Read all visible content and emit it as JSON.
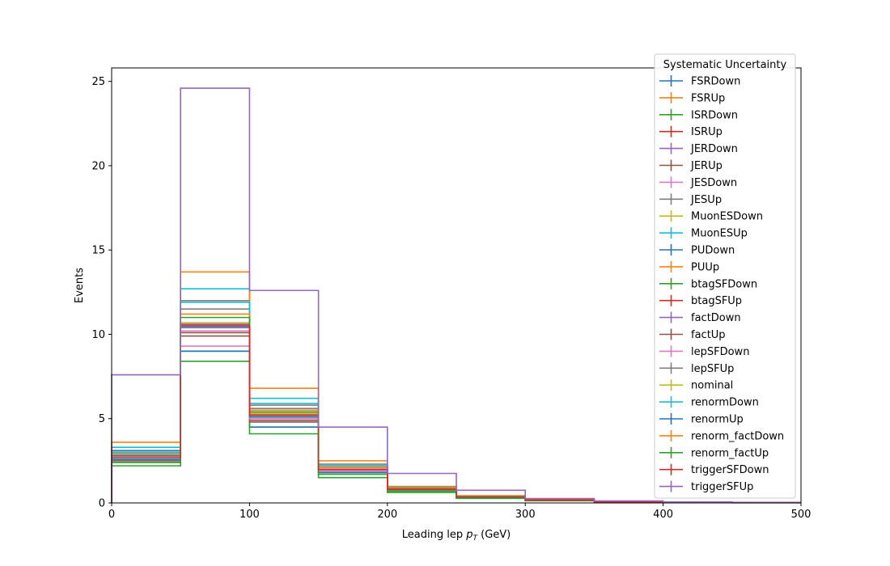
{
  "chart_data": {
    "type": "step-histogram",
    "xlabel_main": "Leading lep ",
    "xlabel_var": "p",
    "xlabel_sub": "T",
    "xlabel_unit": " (GeV)",
    "ylabel": "Events",
    "xlim": [
      0,
      500
    ],
    "ylim": [
      0,
      25.8
    ],
    "xticks": [
      0,
      100,
      200,
      300,
      400,
      500
    ],
    "yticks": [
      0,
      5,
      10,
      15,
      20,
      25
    ],
    "grid": false,
    "legend": {
      "title": "Systematic Uncertainty",
      "placement": "upper-right"
    },
    "bin_edges": [
      0,
      50,
      100,
      150,
      200,
      250,
      300,
      350,
      400,
      450,
      500
    ],
    "series": [
      {
        "name": "FSRDown",
        "color": "#1f77b4",
        "values": [
          2.8,
          9.0,
          5.3,
          2.1,
          0.85,
          0.38,
          0.18,
          0.08,
          0.04,
          0.02
        ]
      },
      {
        "name": "FSRUp",
        "color": "#ff7f0e",
        "values": [
          2.6,
          10.6,
          5.0,
          1.9,
          0.78,
          0.34,
          0.16,
          0.07,
          0.03,
          0.02
        ]
      },
      {
        "name": "ISRDown",
        "color": "#2ca02c",
        "values": [
          2.5,
          10.6,
          5.2,
          2.0,
          0.8,
          0.36,
          0.17,
          0.07,
          0.03,
          0.02
        ]
      },
      {
        "name": "ISRUp",
        "color": "#d62728",
        "values": [
          2.7,
          10.5,
          5.2,
          2.0,
          0.82,
          0.36,
          0.17,
          0.07,
          0.03,
          0.02
        ]
      },
      {
        "name": "JERDown",
        "color": "#9467bd",
        "values": [
          2.6,
          10.4,
          5.1,
          2.0,
          0.8,
          0.35,
          0.17,
          0.07,
          0.03,
          0.02
        ]
      },
      {
        "name": "JERUp",
        "color": "#8c564b",
        "values": [
          2.6,
          10.1,
          4.9,
          1.9,
          0.78,
          0.34,
          0.16,
          0.07,
          0.03,
          0.02
        ]
      },
      {
        "name": "JESDown",
        "color": "#e377c2",
        "values": [
          2.4,
          9.3,
          4.5,
          1.8,
          0.72,
          0.32,
          0.15,
          0.06,
          0.03,
          0.02
        ]
      },
      {
        "name": "JESUp",
        "color": "#7f7f7f",
        "values": [
          3.0,
          12.0,
          5.8,
          2.3,
          0.92,
          0.4,
          0.19,
          0.08,
          0.04,
          0.02
        ]
      },
      {
        "name": "MuonESDown",
        "color": "#bcbd22",
        "values": [
          2.7,
          10.5,
          5.2,
          2.0,
          0.82,
          0.36,
          0.17,
          0.07,
          0.03,
          0.02
        ]
      },
      {
        "name": "MuonESUp",
        "color": "#17becf",
        "values": [
          3.3,
          12.7,
          6.2,
          2.2,
          0.88,
          0.38,
          0.18,
          0.08,
          0.04,
          0.02
        ]
      },
      {
        "name": "PUDown",
        "color": "#1f77b4",
        "values": [
          3.1,
          9.0,
          4.5,
          1.8,
          0.72,
          0.32,
          0.15,
          0.06,
          0.03,
          0.02
        ]
      },
      {
        "name": "PUUp",
        "color": "#ff7f0e",
        "values": [
          3.6,
          13.7,
          6.8,
          2.5,
          0.98,
          0.43,
          0.2,
          0.09,
          0.04,
          0.02
        ]
      },
      {
        "name": "btagSFDown",
        "color": "#2ca02c",
        "values": [
          2.2,
          8.4,
          4.1,
          1.5,
          0.62,
          0.27,
          0.13,
          0.06,
          0.03,
          0.01
        ]
      },
      {
        "name": "btagSFUp",
        "color": "#d62728",
        "values": [
          2.9,
          10.6,
          5.3,
          2.0,
          0.84,
          0.37,
          0.18,
          0.08,
          0.04,
          0.02
        ]
      },
      {
        "name": "factDown",
        "color": "#9467bd",
        "values": [
          2.6,
          10.6,
          5.2,
          2.0,
          0.82,
          0.36,
          0.17,
          0.07,
          0.03,
          0.02
        ]
      },
      {
        "name": "factUp",
        "color": "#8c564b",
        "values": [
          2.5,
          9.9,
          4.8,
          1.9,
          0.76,
          0.33,
          0.16,
          0.07,
          0.03,
          0.02
        ]
      },
      {
        "name": "lepSFDown",
        "color": "#e377c2",
        "values": [
          2.6,
          10.2,
          5.0,
          1.9,
          0.78,
          0.34,
          0.16,
          0.07,
          0.03,
          0.02
        ]
      },
      {
        "name": "lepSFUp",
        "color": "#7f7f7f",
        "values": [
          2.9,
          11.5,
          5.6,
          2.2,
          0.88,
          0.38,
          0.18,
          0.08,
          0.04,
          0.02
        ]
      },
      {
        "name": "nominal",
        "color": "#bcbd22",
        "values": [
          2.7,
          10.7,
          5.3,
          2.0,
          0.83,
          0.36,
          0.17,
          0.07,
          0.03,
          0.02
        ]
      },
      {
        "name": "renormDown",
        "color": "#17becf",
        "values": [
          3.0,
          11.9,
          5.9,
          2.2,
          0.9,
          0.39,
          0.18,
          0.08,
          0.04,
          0.02
        ]
      },
      {
        "name": "renormUp",
        "color": "#1f77b4",
        "values": [
          2.6,
          10.4,
          5.1,
          2.0,
          0.8,
          0.35,
          0.17,
          0.07,
          0.03,
          0.02
        ]
      },
      {
        "name": "renorm_factDown",
        "color": "#ff7f0e",
        "values": [
          2.9,
          11.2,
          5.5,
          2.1,
          0.86,
          0.37,
          0.18,
          0.08,
          0.04,
          0.02
        ]
      },
      {
        "name": "renorm_factUp",
        "color": "#2ca02c",
        "values": [
          2.4,
          11.0,
          5.4,
          1.7,
          0.7,
          0.31,
          0.15,
          0.06,
          0.03,
          0.02
        ]
      },
      {
        "name": "triggerSFDown",
        "color": "#d62728",
        "values": [
          2.7,
          10.5,
          5.2,
          2.0,
          0.82,
          0.36,
          0.17,
          0.07,
          0.03,
          0.02
        ]
      },
      {
        "name": "triggerSFUp",
        "color": "#9467bd",
        "values": [
          7.6,
          24.6,
          12.6,
          4.5,
          1.75,
          0.75,
          0.26,
          0.12,
          0.06,
          0.03
        ]
      }
    ]
  }
}
